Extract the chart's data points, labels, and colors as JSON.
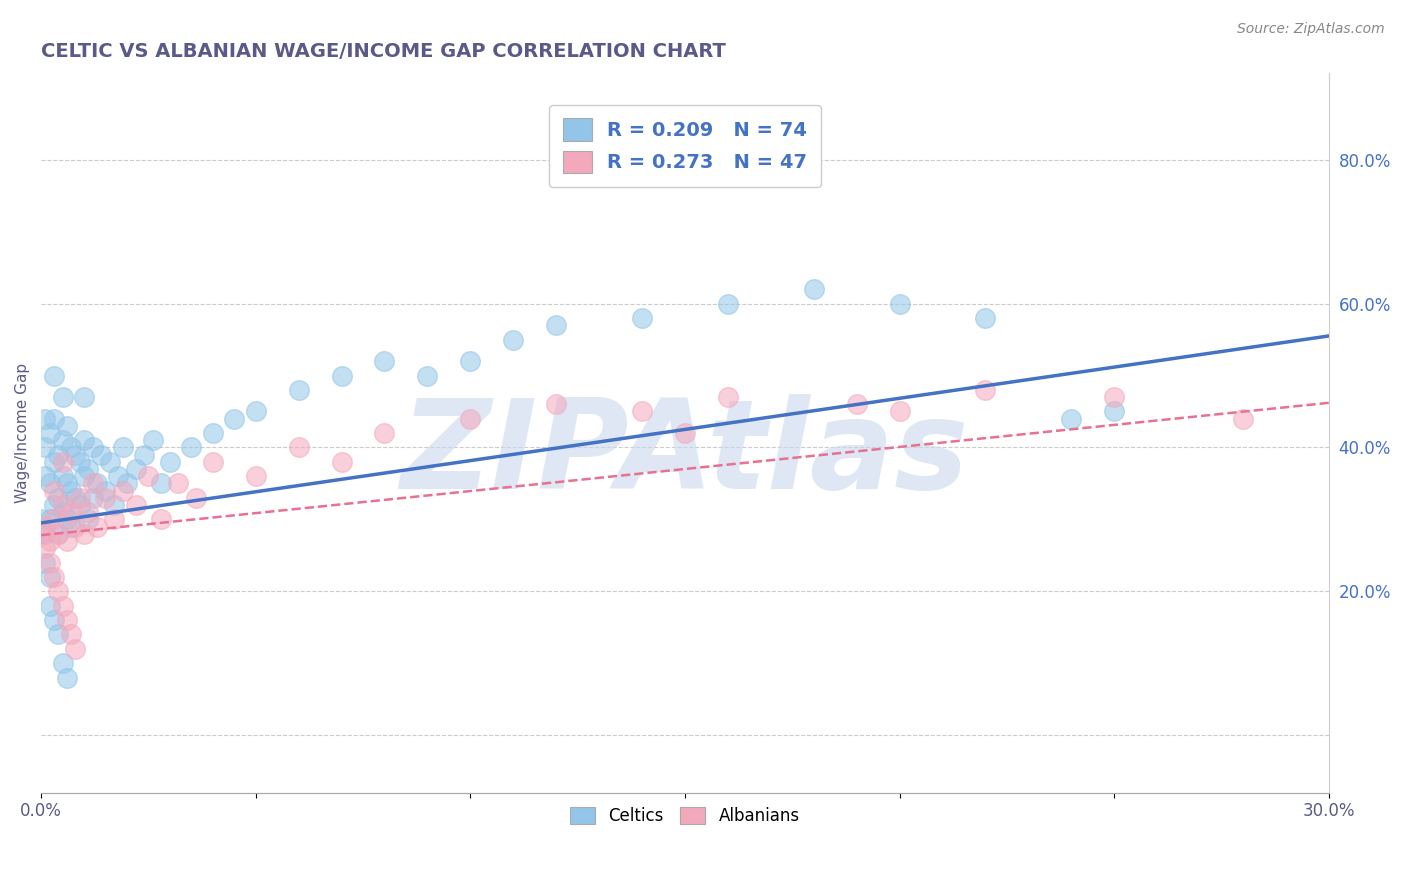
{
  "title": "CELTIC VS ALBANIAN WAGE/INCOME GAP CORRELATION CHART",
  "source": "Source: ZipAtlas.com",
  "ylabel": "Wage/Income Gap",
  "xlim": [
    0.0,
    0.3
  ],
  "ylim": [
    -0.08,
    0.92
  ],
  "celtics_color": "#92C5E8",
  "albanians_color": "#F4A8BC",
  "celtics_line_color": "#4472C4",
  "albanians_line_color": "#E87090",
  "watermark": "ZIPAtlas",
  "watermark_color": "#C8D8EC",
  "background_color": "#FFFFFF",
  "title_color": "#5A5A8A",
  "source_color": "#888888",
  "legend_label1": "R = 0.209   N = 74",
  "legend_label2": "R = 0.273   N = 47",
  "celtics_line_x0": 0.0,
  "celtics_line_y0": 0.295,
  "celtics_line_x1": 0.3,
  "celtics_line_y1": 0.555,
  "albanians_line_x0": 0.0,
  "albanians_line_y0": 0.278,
  "albanians_line_x1": 0.3,
  "albanians_line_y1": 0.462,
  "celtics_x": [
    0.001,
    0.001,
    0.001,
    0.002,
    0.002,
    0.002,
    0.003,
    0.003,
    0.003,
    0.003,
    0.004,
    0.004,
    0.004,
    0.005,
    0.005,
    0.005,
    0.005,
    0.006,
    0.006,
    0.006,
    0.007,
    0.007,
    0.007,
    0.008,
    0.008,
    0.009,
    0.009,
    0.01,
    0.01,
    0.01,
    0.011,
    0.011,
    0.012,
    0.012,
    0.013,
    0.014,
    0.015,
    0.016,
    0.017,
    0.018,
    0.019,
    0.02,
    0.022,
    0.024,
    0.026,
    0.028,
    0.03,
    0.035,
    0.04,
    0.045,
    0.05,
    0.06,
    0.07,
    0.08,
    0.09,
    0.1,
    0.11,
    0.12,
    0.14,
    0.16,
    0.18,
    0.2,
    0.22,
    0.24,
    0.0,
    0.001,
    0.001,
    0.002,
    0.002,
    0.003,
    0.004,
    0.005,
    0.006,
    0.25
  ],
  "celtics_y": [
    0.36,
    0.4,
    0.44,
    0.3,
    0.35,
    0.42,
    0.32,
    0.38,
    0.44,
    0.5,
    0.28,
    0.33,
    0.39,
    0.31,
    0.36,
    0.41,
    0.47,
    0.3,
    0.35,
    0.43,
    0.29,
    0.34,
    0.4,
    0.33,
    0.39,
    0.32,
    0.38,
    0.36,
    0.41,
    0.47,
    0.3,
    0.37,
    0.33,
    0.4,
    0.35,
    0.39,
    0.34,
    0.38,
    0.32,
    0.36,
    0.4,
    0.35,
    0.37,
    0.39,
    0.41,
    0.35,
    0.38,
    0.4,
    0.42,
    0.44,
    0.45,
    0.48,
    0.5,
    0.52,
    0.5,
    0.52,
    0.55,
    0.57,
    0.58,
    0.6,
    0.62,
    0.6,
    0.58,
    0.44,
    0.3,
    0.28,
    0.24,
    0.22,
    0.18,
    0.16,
    0.14,
    0.1,
    0.08,
    0.45
  ],
  "albanians_x": [
    0.001,
    0.002,
    0.003,
    0.003,
    0.004,
    0.005,
    0.005,
    0.006,
    0.007,
    0.008,
    0.009,
    0.01,
    0.011,
    0.012,
    0.013,
    0.015,
    0.017,
    0.019,
    0.022,
    0.025,
    0.028,
    0.032,
    0.036,
    0.04,
    0.05,
    0.06,
    0.07,
    0.08,
    0.1,
    0.12,
    0.14,
    0.16,
    0.19,
    0.22,
    0.0,
    0.001,
    0.002,
    0.003,
    0.004,
    0.005,
    0.006,
    0.007,
    0.008,
    0.25,
    0.28,
    0.2,
    0.15
  ],
  "albanians_y": [
    0.29,
    0.27,
    0.3,
    0.34,
    0.28,
    0.32,
    0.38,
    0.27,
    0.31,
    0.29,
    0.33,
    0.28,
    0.31,
    0.35,
    0.29,
    0.33,
    0.3,
    0.34,
    0.32,
    0.36,
    0.3,
    0.35,
    0.33,
    0.38,
    0.36,
    0.4,
    0.38,
    0.42,
    0.44,
    0.46,
    0.45,
    0.47,
    0.46,
    0.48,
    0.28,
    0.26,
    0.24,
    0.22,
    0.2,
    0.18,
    0.16,
    0.14,
    0.12,
    0.47,
    0.44,
    0.45,
    0.42
  ]
}
